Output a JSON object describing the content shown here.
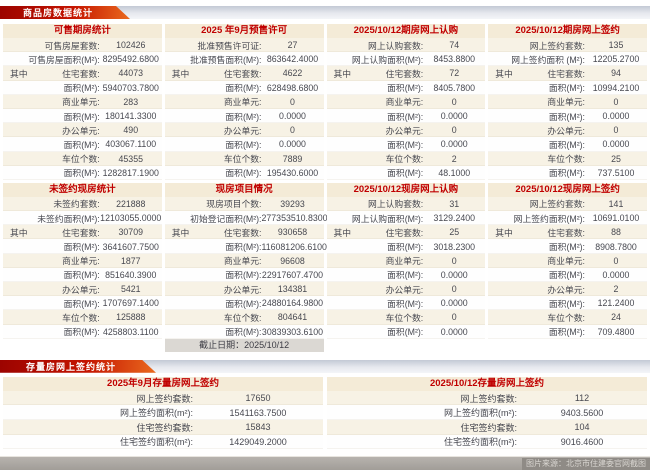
{
  "page": {
    "section1_tab": "商品房数据统计",
    "section2_tab": "存量房网上签约统计",
    "watermark": "图片来源：北京市住建委官网截图"
  },
  "panels": [
    {
      "title": "可售期房统计",
      "rows": [
        {
          "prefix": "",
          "label": "可售房屋套数:",
          "value": "102426"
        },
        {
          "prefix": "",
          "label": "可售房屋面积(M²):",
          "value": "8295492.6800"
        },
        {
          "prefix": "其中",
          "label": "住宅套数:",
          "value": "44073"
        },
        {
          "prefix": "",
          "label": "面积(M²):",
          "value": "5940703.7800"
        },
        {
          "prefix": "",
          "label": "商业单元:",
          "value": "283"
        },
        {
          "prefix": "",
          "label": "面积(M²):",
          "value": "180141.3300"
        },
        {
          "prefix": "",
          "label": "办公单元:",
          "value": "490"
        },
        {
          "prefix": "",
          "label": "面积(M²):",
          "value": "403067.1100"
        },
        {
          "prefix": "",
          "label": "车位个数:",
          "value": "45355"
        },
        {
          "prefix": "",
          "label": "面积(M²):",
          "value": "1282817.1900"
        }
      ],
      "footer": ""
    },
    {
      "title": "2025 年9月预售许可",
      "rows": [
        {
          "prefix": "",
          "label": "批准预售许可证:",
          "value": "27"
        },
        {
          "prefix": "",
          "label": "批准预售面积(M²):",
          "value": "863642.4000"
        },
        {
          "prefix": "其中",
          "label": "住宅套数:",
          "value": "4622"
        },
        {
          "prefix": "",
          "label": "面积(M²):",
          "value": "628498.6800"
        },
        {
          "prefix": "",
          "label": "商业单元:",
          "value": "0"
        },
        {
          "prefix": "",
          "label": "面积(M²):",
          "value": "0.0000"
        },
        {
          "prefix": "",
          "label": "办公单元:",
          "value": "0"
        },
        {
          "prefix": "",
          "label": "面积(M²):",
          "value": "0.0000"
        },
        {
          "prefix": "",
          "label": "车位个数:",
          "value": "7889"
        },
        {
          "prefix": "",
          "label": "面积(M²):",
          "value": "195430.6000"
        }
      ],
      "footer": ""
    },
    {
      "title": "2025/10/12期房网上认购",
      "rows": [
        {
          "prefix": "",
          "label": "网上认购套数:",
          "value": "74"
        },
        {
          "prefix": "",
          "label": "网上认购面积(M²):",
          "value": "8453.8800"
        },
        {
          "prefix": "其中",
          "label": "住宅套数:",
          "value": "72"
        },
        {
          "prefix": "",
          "label": "面积(M²):",
          "value": "8405.7800"
        },
        {
          "prefix": "",
          "label": "商业单元:",
          "value": "0"
        },
        {
          "prefix": "",
          "label": "面积(M²):",
          "value": "0.0000"
        },
        {
          "prefix": "",
          "label": "办公单元:",
          "value": "0"
        },
        {
          "prefix": "",
          "label": "面积(M²):",
          "value": "0.0000"
        },
        {
          "prefix": "",
          "label": "车位个数:",
          "value": "2"
        },
        {
          "prefix": "",
          "label": "面积(M²):",
          "value": "48.1000"
        }
      ],
      "footer": ""
    },
    {
      "title": "2025/10/12期房网上签约",
      "rows": [
        {
          "prefix": "",
          "label": "网上签约套数:",
          "value": "135"
        },
        {
          "prefix": "",
          "label": "网上签约面积 (M²):",
          "value": "12205.2700"
        },
        {
          "prefix": "其中",
          "label": "住宅套数:",
          "value": "94"
        },
        {
          "prefix": "",
          "label": "面积(M²):",
          "value": "10994.2100"
        },
        {
          "prefix": "",
          "label": "商业单元:",
          "value": "0"
        },
        {
          "prefix": "",
          "label": "面积(M²):",
          "value": "0.0000"
        },
        {
          "prefix": "",
          "label": "办公单元:",
          "value": "0"
        },
        {
          "prefix": "",
          "label": "面积(M²):",
          "value": "0.0000"
        },
        {
          "prefix": "",
          "label": "车位个数:",
          "value": "25"
        },
        {
          "prefix": "",
          "label": "面积(M²):",
          "value": "737.5100"
        }
      ],
      "footer": ""
    },
    {
      "title": "未签约现房统计",
      "rows": [
        {
          "prefix": "",
          "label": "未签约套数:",
          "value": "221888"
        },
        {
          "prefix": "",
          "label": "未签约面积(M²):",
          "value": "12103055.0000"
        },
        {
          "prefix": "其中",
          "label": "住宅套数:",
          "value": "30709"
        },
        {
          "prefix": "",
          "label": "面积(M²):",
          "value": "3641607.7500"
        },
        {
          "prefix": "",
          "label": "商业单元:",
          "value": "1877"
        },
        {
          "prefix": "",
          "label": "面积(M²):",
          "value": "851640.3900"
        },
        {
          "prefix": "",
          "label": "办公单元:",
          "value": "5421"
        },
        {
          "prefix": "",
          "label": "面积(M²):",
          "value": "1707697.1400"
        },
        {
          "prefix": "",
          "label": "车位个数:",
          "value": "125888"
        },
        {
          "prefix": "",
          "label": "面积(M²):",
          "value": "4258803.1100"
        }
      ],
      "footer": ""
    },
    {
      "title": "现房项目情况",
      "rows": [
        {
          "prefix": "",
          "label": "现房项目个数:",
          "value": "39293"
        },
        {
          "prefix": "",
          "label": "初始登记面积(M²):",
          "value": "277353510.8300"
        },
        {
          "prefix": "其中",
          "label": "住宅套数:",
          "value": "930658"
        },
        {
          "prefix": "",
          "label": "面积(M²):",
          "value": "116081206.6100"
        },
        {
          "prefix": "",
          "label": "商业单元:",
          "value": "96608"
        },
        {
          "prefix": "",
          "label": "面积(M²):",
          "value": "22917607.4700"
        },
        {
          "prefix": "",
          "label": "办公单元:",
          "value": "134381"
        },
        {
          "prefix": "",
          "label": "面积(M²):",
          "value": "24880164.9800"
        },
        {
          "prefix": "",
          "label": "车位个数:",
          "value": "804641"
        },
        {
          "prefix": "",
          "label": "面积(M²):",
          "value": "30839303.6100"
        }
      ],
      "footer": "截止日期：2025/10/12"
    },
    {
      "title": "2025/10/12现房网上认购",
      "rows": [
        {
          "prefix": "",
          "label": "网上认购套数:",
          "value": "31"
        },
        {
          "prefix": "",
          "label": "网上认购面积(M²):",
          "value": "3129.2400"
        },
        {
          "prefix": "其中",
          "label": "住宅套数:",
          "value": "25"
        },
        {
          "prefix": "",
          "label": "面积(M²):",
          "value": "3018.2300"
        },
        {
          "prefix": "",
          "label": "商业单元:",
          "value": "0"
        },
        {
          "prefix": "",
          "label": "面积(M²):",
          "value": "0.0000"
        },
        {
          "prefix": "",
          "label": "办公单元:",
          "value": "0"
        },
        {
          "prefix": "",
          "label": "面积(M²):",
          "value": "0.0000"
        },
        {
          "prefix": "",
          "label": "车位个数:",
          "value": "0"
        },
        {
          "prefix": "",
          "label": "面积(M²):",
          "value": "0.0000"
        }
      ],
      "footer": ""
    },
    {
      "title": "2025/10/12现房网上签约",
      "rows": [
        {
          "prefix": "",
          "label": "网上签约套数:",
          "value": "141"
        },
        {
          "prefix": "",
          "label": "网上签约面积(M²):",
          "value": "10691.0100"
        },
        {
          "prefix": "其中",
          "label": "住宅套数:",
          "value": "88"
        },
        {
          "prefix": "",
          "label": "面积(M²):",
          "value": "8908.7800"
        },
        {
          "prefix": "",
          "label": "商业单元:",
          "value": "0"
        },
        {
          "prefix": "",
          "label": "面积(M²):",
          "value": "0.0000"
        },
        {
          "prefix": "",
          "label": "办公单元:",
          "value": "2"
        },
        {
          "prefix": "",
          "label": "面积(M²):",
          "value": "121.2400"
        },
        {
          "prefix": "",
          "label": "车位个数:",
          "value": "24"
        },
        {
          "prefix": "",
          "label": "面积(M²):",
          "value": "709.4800"
        }
      ],
      "footer": ""
    }
  ],
  "bottom_panels": [
    {
      "title": "2025年9月存量房网上签约",
      "rows": [
        {
          "prefix": "",
          "label": "网上签约套数:",
          "value": "17650"
        },
        {
          "prefix": "",
          "label": "网上签约面积(m²):",
          "value": "1541163.7500"
        },
        {
          "prefix": "",
          "label": "住宅签约套数:",
          "value": "15843"
        },
        {
          "prefix": "",
          "label": "住宅签约面积(m²):",
          "value": "1429049.2000"
        }
      ],
      "footer": ""
    },
    {
      "title": "2025/10/12存量房网上签约",
      "rows": [
        {
          "prefix": "",
          "label": "网上签约套数:",
          "value": "112"
        },
        {
          "prefix": "",
          "label": "网上签约面积(m²):",
          "value": "9403.5600"
        },
        {
          "prefix": "",
          "label": "住宅签约套数:",
          "value": "104"
        },
        {
          "prefix": "",
          "label": "住宅签约面积(m²):",
          "value": "9016.4600"
        }
      ],
      "footer": ""
    }
  ]
}
